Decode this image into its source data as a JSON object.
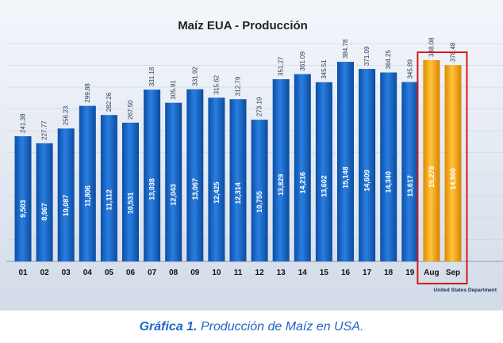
{
  "chart_data": {
    "type": "bar",
    "title": "Maíz EUA - Producción",
    "categories": [
      "01",
      "02",
      "03",
      "04",
      "05",
      "06",
      "07",
      "08",
      "09",
      "10",
      "11",
      "12",
      "13",
      "14",
      "15",
      "16",
      "17",
      "18",
      "19",
      "Aug",
      "Sep"
    ],
    "series": [
      {
        "values": [
          241.38,
          227.77,
          256.23,
          299.88,
          282.26,
          267.5,
          331.18,
          305.91,
          331.92,
          315.62,
          312.79,
          273.19,
          351.27,
          361.09,
          345.51,
          384.78,
          371.09,
          364.25,
          345.89,
          388.08,
          378.48
        ],
        "inner_labels": [
          "9,503",
          "8,967",
          "10,087",
          "11,806",
          "11,112",
          "10,531",
          "13,038",
          "12,043",
          "13,067",
          "12,425",
          "12,314",
          "10,755",
          "13,829",
          "14,216",
          "13,602",
          "15,148",
          "14,609",
          "14,340",
          "13,617",
          "15,278",
          "14,900"
        ]
      }
    ],
    "highlighted_categories": [
      "Aug",
      "Sep"
    ],
    "colors": {
      "bar": "#1565c8",
      "highlight_bar": "#f2a20e",
      "highlight_box": "#d21b1b",
      "title": "#222222"
    },
    "source_note": "United States Department",
    "ylim": [
      0,
      420
    ],
    "grid": true
  },
  "caption": {
    "label": "Gráfica 1.",
    "text": " Producción de Maíz en USA."
  }
}
